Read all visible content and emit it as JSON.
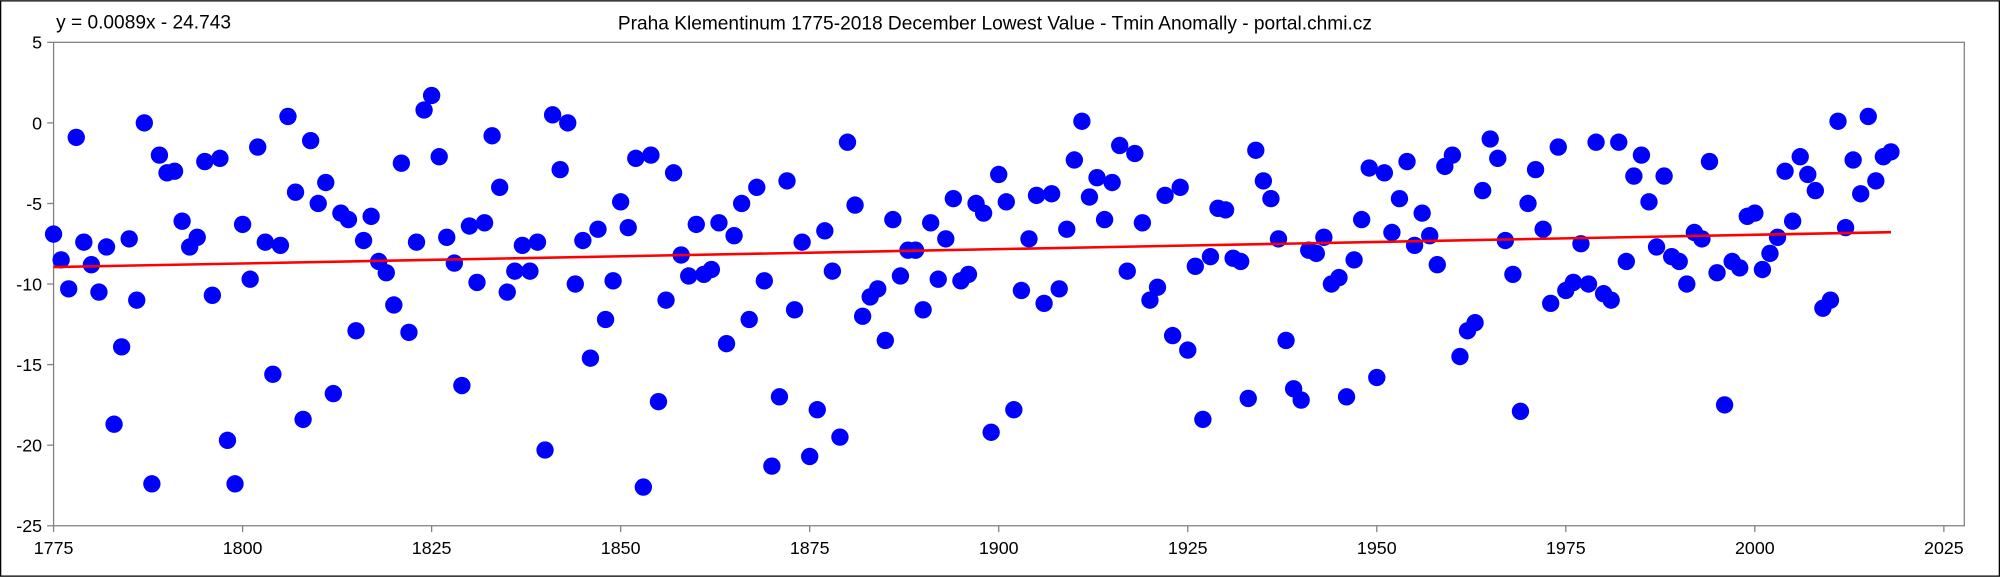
{
  "chart_data": {
    "type": "scatter",
    "title": "Praha Klementinum 1775-2018 December Lowest Value - Tmin Anomally - portal.chmi.cz",
    "xlabel": "",
    "ylabel": "",
    "xlim": [
      1775,
      2025
    ],
    "ylim": [
      -25,
      5
    ],
    "x_ticks": [
      1775,
      1800,
      1825,
      1850,
      1875,
      1900,
      1925,
      1950,
      1975,
      2000,
      2025
    ],
    "y_ticks": [
      5,
      0,
      -5,
      -10,
      -15,
      -20,
      -25
    ],
    "grid": false,
    "legend": "none",
    "colors": {
      "points": "#0000ff",
      "trendline": "#ff0000"
    },
    "trendline": {
      "label": "y = 0.0089x - 24.743",
      "slope": 0.0089,
      "intercept": -24.743,
      "x_range": [
        1775,
        2018
      ]
    },
    "x_start": 1775,
    "values": [
      -6.9,
      -8.5,
      -10.3,
      -0.9,
      -7.4,
      -8.8,
      -10.5,
      -7.7,
      -18.7,
      -13.9,
      -7.2,
      -11.0,
      0.0,
      -22.4,
      -2.0,
      -3.1,
      -3.0,
      -6.1,
      -7.7,
      -7.1,
      -2.4,
      -10.7,
      -2.2,
      -19.7,
      -22.4,
      -6.3,
      -9.7,
      -1.5,
      -7.4,
      -15.6,
      -7.6,
      0.4,
      -4.3,
      -18.4,
      -1.1,
      -5.0,
      -3.7,
      -16.8,
      -5.6,
      -6.0,
      -12.9,
      -7.3,
      -5.8,
      -8.6,
      -9.3,
      -11.3,
      -2.5,
      -13.0,
      -7.4,
      0.8,
      1.7,
      -2.1,
      -7.1,
      -8.7,
      -16.3,
      -6.4,
      -9.9,
      -6.2,
      -0.8,
      -4.0,
      -10.5,
      -9.2,
      -7.6,
      -9.2,
      -7.4,
      -20.3,
      0.5,
      -2.9,
      0.0,
      -10.0,
      -7.3,
      -14.6,
      -6.6,
      -12.2,
      -9.8,
      -4.9,
      -6.5,
      -2.2,
      -22.6,
      -2.0,
      -17.3,
      -11.0,
      -3.1,
      -8.2,
      -9.5,
      -6.3,
      -9.4,
      -9.1,
      -6.2,
      -13.7,
      -7.0,
      -5.0,
      -12.2,
      -4.0,
      -9.8,
      -21.3,
      -17.0,
      -3.6,
      -11.6,
      -7.4,
      -20.7,
      -17.8,
      -6.7,
      -9.2,
      -19.5,
      -1.2,
      -5.1,
      -12.0,
      -10.8,
      -10.3,
      -13.5,
      -6.0,
      -9.5,
      -7.9,
      -7.9,
      -11.6,
      -6.2,
      -9.7,
      -7.2,
      -4.7,
      -9.8,
      -9.4,
      -5.0,
      -5.6,
      -19.2,
      -3.2,
      -4.9,
      -17.8,
      -10.4,
      -7.2,
      -4.5,
      -11.2,
      -4.4,
      -10.3,
      -6.6,
      -2.3,
      0.1,
      -4.6,
      -3.4,
      -6.0,
      -3.7,
      -1.4,
      -9.2,
      -1.9,
      -6.2,
      -11.0,
      -10.2,
      -4.5,
      -13.2,
      -4.0,
      -14.1,
      -8.9,
      -18.4,
      -8.3,
      -5.3,
      -5.4,
      -8.4,
      -8.6,
      -17.1,
      -1.7,
      -3.6,
      -4.7,
      -7.2,
      -13.5,
      -16.5,
      -17.2,
      -7.9,
      -8.1,
      -7.1,
      -10.0,
      -9.6,
      -17.0,
      -8.5,
      -6.0,
      -2.8,
      -15.8,
      -3.1,
      -6.8,
      -4.7,
      -2.4,
      -7.6,
      -5.6,
      -7.0,
      -8.8,
      -2.7,
      -2.0,
      -14.5,
      -12.9,
      -12.4,
      -4.2,
      -1.0,
      -2.2,
      -7.3,
      -9.4,
      -17.9,
      -5.0,
      -2.9,
      -6.6,
      -11.2,
      -1.5,
      -10.4,
      -9.9,
      -7.5,
      -10.0,
      -1.2,
      -10.6,
      -11.0,
      -1.2,
      -8.6,
      -3.3,
      -2.0,
      -4.9,
      -7.7,
      -3.3,
      -8.3,
      -8.6,
      -10.0,
      -6.8,
      -7.2,
      -2.4,
      -9.3,
      -17.5,
      -8.6,
      -9.0,
      -5.8,
      -5.6,
      -9.1,
      -8.1,
      -7.1,
      -3.0,
      -6.1,
      -2.1,
      -3.2,
      -4.2,
      -11.5,
      -11.0,
      0.1,
      -6.5,
      -2.3,
      -4.4,
      0.4,
      -3.6,
      -2.1,
      -1.8
    ]
  }
}
